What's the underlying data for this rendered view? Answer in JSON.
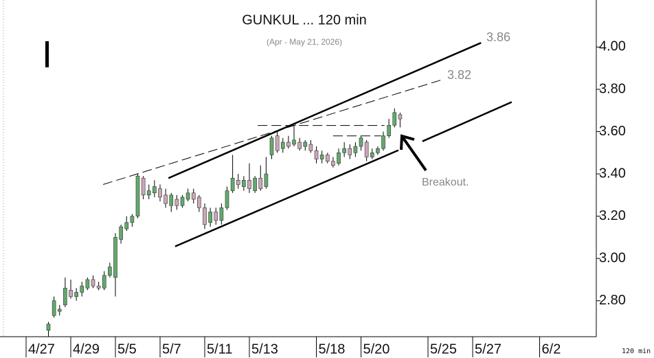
{
  "chart_data": {
    "type": "candlestick",
    "title": "GUNKUL ... 120 min",
    "subtitle": "(Apr - May 21, 2026)",
    "interval_label": "120 min",
    "up_color": "#62aa6c",
    "down_color": "#cda6b8",
    "xlim": [
      -4.06,
      102.15
    ],
    "ylim": [
      2.63,
      4.19
    ],
    "xticks": [
      {
        "value": 0,
        "label": "4/27"
      },
      {
        "value": 8,
        "label": "4/29"
      },
      {
        "value": 16,
        "label": "5/5"
      },
      {
        "value": 24,
        "label": "5/7"
      },
      {
        "value": 32,
        "label": "5/11"
      },
      {
        "value": 40,
        "label": "5/13"
      },
      {
        "value": 52,
        "label": "5/18"
      },
      {
        "value": 60,
        "label": "5/20"
      },
      {
        "value": 72,
        "label": "5/25"
      },
      {
        "value": 80,
        "label": "5/27"
      },
      {
        "value": 92,
        "label": "6/2"
      }
    ],
    "yticks": [
      {
        "value": 2.8,
        "label": "2.80"
      },
      {
        "value": 3,
        "label": "3.00"
      },
      {
        "value": 3.2,
        "label": "3.20"
      },
      {
        "value": 3.4,
        "label": "3.40"
      },
      {
        "value": 3.6,
        "label": "3.60"
      },
      {
        "value": 3.8,
        "label": "3.80"
      },
      {
        "value": 4,
        "label": "4.00"
      }
    ],
    "x": [
      4,
      5,
      6,
      7,
      8,
      9,
      10,
      11,
      12,
      13,
      14,
      15,
      16,
      17,
      18,
      19,
      20,
      21,
      22,
      23,
      24,
      25,
      26,
      27,
      28,
      29,
      30,
      31,
      32,
      33,
      34,
      35,
      36,
      37,
      38,
      39,
      40,
      41,
      42,
      43,
      44,
      45,
      46,
      47,
      48,
      49,
      50,
      51,
      52,
      53,
      54,
      55,
      56,
      57,
      58,
      59,
      60,
      61,
      62,
      63,
      64,
      65,
      66,
      67
    ],
    "open": [
      2.66,
      2.73,
      2.75,
      2.78,
      2.85,
      2.82,
      2.84,
      2.86,
      2.9,
      2.87,
      2.86,
      2.92,
      2.91,
      3.09,
      3.14,
      3.17,
      3.2,
      3.38,
      3.3,
      3.31,
      3.33,
      3.3,
      3.25,
      3.28,
      3.25,
      3.28,
      3.31,
      3.29,
      3.24,
      3.17,
      3.22,
      3.18,
      3.24,
      3.32,
      3.37,
      3.34,
      3.37,
      3.32,
      3.38,
      3.34,
      3.49,
      3.58,
      3.52,
      3.55,
      3.54,
      3.55,
      3.53,
      3.54,
      3.51,
      3.47,
      3.49,
      3.46,
      3.45,
      3.5,
      3.52,
      3.5,
      3.53,
      3.55,
      3.48,
      3.5,
      3.52,
      3.58,
      3.63,
      3.68
    ],
    "high": [
      2.7,
      2.82,
      2.78,
      2.91,
      2.9,
      2.86,
      2.89,
      2.91,
      2.92,
      2.89,
      2.94,
      2.98,
      3.12,
      3.16,
      3.2,
      3.21,
      3.4,
      3.39,
      3.35,
      3.37,
      3.35,
      3.33,
      3.31,
      3.3,
      3.3,
      3.33,
      3.33,
      3.3,
      3.26,
      3.24,
      3.24,
      3.26,
      3.34,
      3.49,
      3.4,
      3.39,
      3.45,
      3.39,
      3.44,
      3.48,
      3.58,
      3.6,
      3.57,
      3.58,
      3.63,
      3.57,
      3.56,
      3.56,
      3.53,
      3.51,
      3.5,
      3.48,
      3.52,
      3.55,
      3.54,
      3.55,
      3.58,
      3.56,
      3.52,
      3.53,
      3.6,
      3.66,
      3.71,
      3.69
    ],
    "low": [
      2.63,
      2.72,
      2.73,
      2.77,
      2.81,
      2.8,
      2.82,
      2.85,
      2.86,
      2.85,
      2.85,
      2.91,
      2.82,
      3.07,
      3.13,
      3.15,
      3.19,
      3.28,
      3.28,
      3.29,
      3.27,
      3.24,
      3.22,
      3.23,
      3.24,
      3.27,
      3.26,
      3.22,
      3.14,
      3.15,
      3.16,
      3.16,
      3.23,
      3.31,
      3.33,
      3.32,
      3.31,
      3.31,
      3.32,
      3.33,
      3.47,
      3.5,
      3.5,
      3.52,
      3.53,
      3.51,
      3.51,
      3.5,
      3.45,
      3.45,
      3.45,
      3.43,
      3.44,
      3.48,
      3.47,
      3.48,
      3.51,
      3.46,
      3.47,
      3.49,
      3.51,
      3.57,
      3.62,
      3.62
    ],
    "close": [
      2.69,
      2.8,
      2.76,
      2.86,
      2.82,
      2.84,
      2.87,
      2.9,
      2.87,
      2.86,
      2.92,
      2.96,
      3.1,
      3.15,
      3.17,
      3.2,
      3.39,
      3.3,
      3.32,
      3.34,
      3.29,
      3.26,
      3.3,
      3.25,
      3.29,
      3.31,
      3.28,
      3.24,
      3.16,
      3.22,
      3.18,
      3.24,
      3.32,
      3.38,
      3.35,
      3.37,
      3.33,
      3.38,
      3.33,
      3.4,
      3.57,
      3.51,
      3.55,
      3.53,
      3.56,
      3.52,
      3.55,
      3.51,
      3.47,
      3.49,
      3.46,
      3.44,
      3.5,
      3.52,
      3.49,
      3.53,
      3.57,
      3.48,
      3.5,
      3.52,
      3.58,
      3.63,
      3.69,
      3.66
    ],
    "trendlines": [
      {
        "x": [
          25.5,
          81.5
        ],
        "y": [
          3.38,
          4.02
        ],
        "dashed": false
      },
      {
        "x": [
          26.7,
          66.7
        ],
        "y": [
          3.057,
          3.512
        ],
        "dashed": false
      },
      {
        "x": [
          71,
          87
        ],
        "y": [
          3.554,
          3.74
        ],
        "dashed": false
      },
      {
        "x": [
          13.8,
          74.7
        ],
        "y": [
          3.35,
          3.847
        ],
        "dashed": true
      },
      {
        "x": [
          41.5,
          64.2
        ],
        "y": [
          3.629,
          3.629
        ],
        "dashed": true
      },
      {
        "x": [
          55,
          63.6
        ],
        "y": [
          3.58,
          3.58
        ],
        "dashed": true
      }
    ],
    "annotations": [
      "3.86",
      "3.82",
      "Breakout."
    ]
  }
}
